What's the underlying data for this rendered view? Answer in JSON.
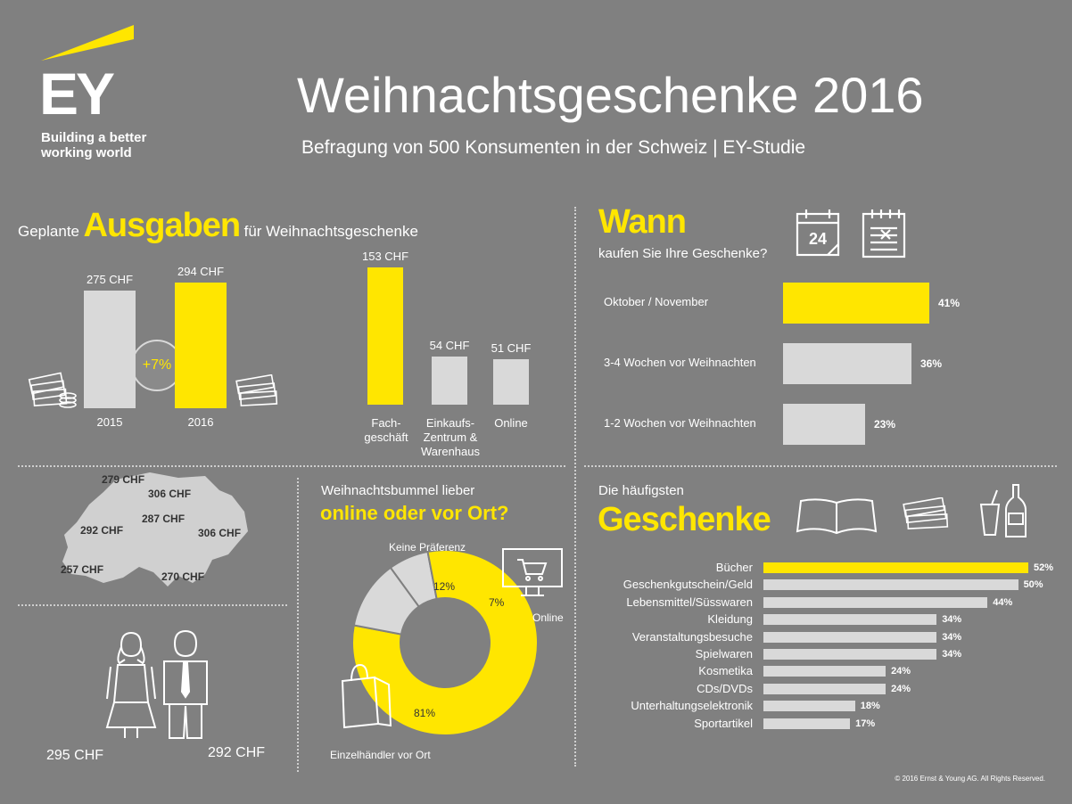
{
  "header": {
    "logo_letters": "EY",
    "logo_tagline_1": "Building a better",
    "logo_tagline_2": "working world",
    "title": "Weihnachtsgeschenke 2016",
    "subtitle": "Befragung von 500 Konsumenten in der Schweiz | EY-Studie"
  },
  "spending": {
    "heading_pre": "Geplante",
    "heading_main": "Ausgaben",
    "heading_post": "für Weihnachtsgeschenke",
    "growth": "+7%",
    "channel_labels": [
      [
        "Fach-",
        "geschäft"
      ],
      [
        "Einkaufs-",
        "Zentrum &",
        "Warenhaus"
      ],
      [
        "Online"
      ]
    ]
  },
  "when": {
    "heading": "Wann",
    "question": "kaufen Sie Ihre Geschenke?",
    "calendar_day": "24"
  },
  "regions": {
    "values": [
      "279 CHF",
      "306 CHF",
      "287 CHF",
      "292 CHF",
      "306 CHF",
      "257 CHF",
      "270 CHF"
    ]
  },
  "gender": {
    "female": "295 CHF",
    "male": "292 CHF"
  },
  "preference": {
    "heading_1": "Weihnachtsbummel lieber",
    "heading_2": "online oder vor Ort?",
    "labels": [
      "Keine Präferenz",
      "Online",
      "Einzelhändler vor Ort"
    ]
  },
  "gifts": {
    "heading_1": "Die häufigsten",
    "heading_2": "Geschenke"
  },
  "footer": "© 2016 Ernst & Young AG. All Rights Reserved.",
  "colors": {
    "accent": "#ffe600",
    "background": "#808080",
    "bar_gray": "#d9d9d9",
    "text_dark": "#333333"
  },
  "chart_data": [
    {
      "type": "bar",
      "categories": [
        "2015",
        "2016"
      ],
      "values": [
        275,
        294
      ],
      "value_labels": [
        "275 CHF",
        "294 CHF"
      ]
    },
    {
      "type": "bar",
      "categories": [
        "Fachgeschäft",
        "Einkaufs-Zentrum & Warenhaus",
        "Online"
      ],
      "values": [
        153,
        54,
        51
      ],
      "value_labels": [
        "153 CHF",
        "54 CHF",
        "51 CHF"
      ]
    },
    {
      "type": "bar",
      "orientation": "horizontal",
      "categories": [
        "Oktober / November",
        "3-4 Wochen vor Weihnachten",
        "1-2 Wochen vor Weihnachten"
      ],
      "values": [
        41,
        36,
        23
      ],
      "value_labels": [
        "41%",
        "36%",
        "23%"
      ]
    },
    {
      "type": "pie",
      "categories": [
        "Einzelhändler vor Ort",
        "Keine Präferenz",
        "Online"
      ],
      "values": [
        81,
        12,
        7
      ],
      "value_labels": [
        "81%",
        "12%",
        "7%"
      ]
    },
    {
      "type": "bar",
      "orientation": "horizontal",
      "categories": [
        "Bücher",
        "Geschenkgutschein/Geld",
        "Lebensmittel/Süsswaren",
        "Kleidung",
        "Veranstaltungsbesuche",
        "Spielwaren",
        "Kosmetika",
        "CDs/DVDs",
        "Unterhaltungselektronik",
        "Sportartikel"
      ],
      "values": [
        52,
        50,
        44,
        34,
        34,
        34,
        24,
        24,
        18,
        17
      ],
      "value_labels": [
        "52%",
        "50%",
        "44%",
        "34%",
        "34%",
        "34%",
        "24%",
        "24%",
        "18%",
        "17%"
      ]
    }
  ]
}
